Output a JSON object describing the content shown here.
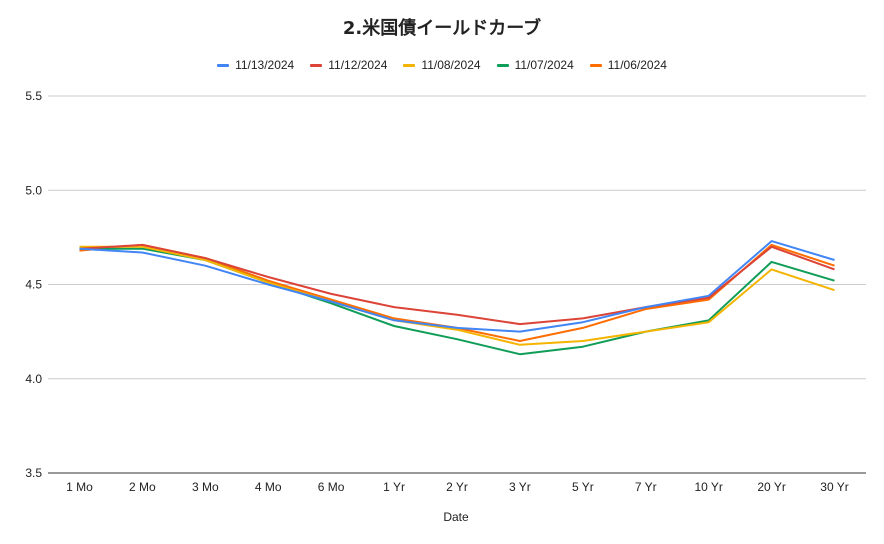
{
  "chart_data": {
    "type": "line",
    "title": "2.米国債イールドカーブ",
    "xlabel": "Date",
    "ylabel": "",
    "ylim": [
      3.5,
      5.5
    ],
    "yticks": [
      "3.5",
      "4.0",
      "4.5",
      "5.0",
      "5.5"
    ],
    "grid": true,
    "legend_position": "top",
    "categories": [
      "1 Mo",
      "2 Mo",
      "3 Mo",
      "4 Mo",
      "6 Mo",
      "1 Yr",
      "2 Yr",
      "3 Yr",
      "5 Yr",
      "7 Yr",
      "10 Yr",
      "20 Yr",
      "30 Yr"
    ],
    "series": [
      {
        "name": "11/13/2024",
        "color": "#4285F4",
        "values": [
          4.69,
          4.67,
          4.6,
          4.5,
          4.41,
          4.31,
          4.27,
          4.25,
          4.3,
          4.38,
          4.44,
          4.73,
          4.63
        ]
      },
      {
        "name": "11/12/2024",
        "color": "#DB4437",
        "values": [
          4.69,
          4.71,
          4.64,
          4.54,
          4.45,
          4.38,
          4.34,
          4.29,
          4.32,
          4.38,
          4.43,
          4.7,
          4.58
        ]
      },
      {
        "name": "11/08/2024",
        "color": "#F4B400",
        "values": [
          4.7,
          4.7,
          4.63,
          4.51,
          4.41,
          4.31,
          4.26,
          4.18,
          4.2,
          4.25,
          4.3,
          4.58,
          4.47
        ]
      },
      {
        "name": "11/07/2024",
        "color": "#0F9D58",
        "values": [
          4.69,
          4.69,
          4.63,
          4.51,
          4.4,
          4.28,
          4.21,
          4.13,
          4.17,
          4.25,
          4.31,
          4.62,
          4.52
        ]
      },
      {
        "name": "11/06/2024",
        "color": "#FF6D01",
        "values": [
          4.68,
          4.71,
          4.64,
          4.52,
          4.42,
          4.32,
          4.27,
          4.2,
          4.27,
          4.37,
          4.42,
          4.71,
          4.6
        ]
      }
    ]
  }
}
